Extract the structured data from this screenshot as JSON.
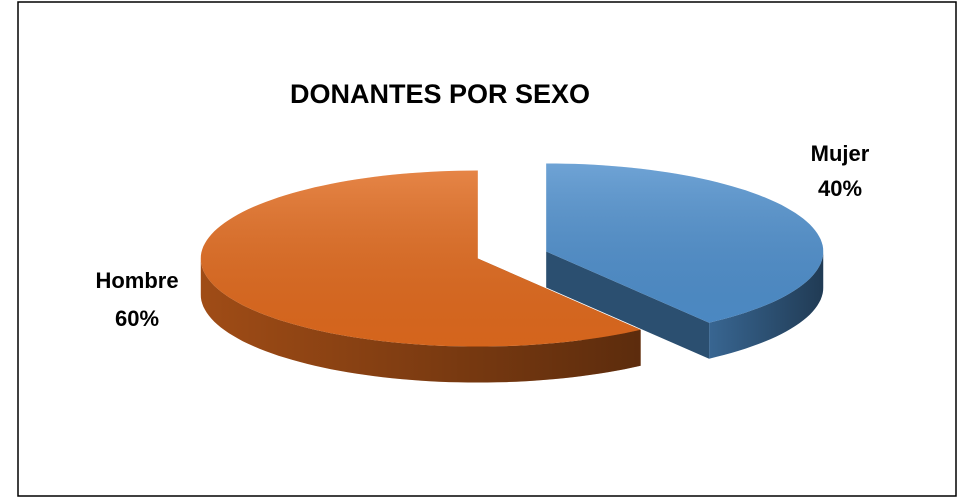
{
  "chart_data": {
    "type": "pie",
    "title": "DONANTES POR SEXO",
    "categories": [
      "Mujer",
      "Hombre"
    ],
    "values": [
      40,
      60
    ],
    "value_labels": [
      "40%",
      "60%"
    ],
    "colors": [
      "#4f8fcc",
      "#e06a1e"
    ]
  }
}
